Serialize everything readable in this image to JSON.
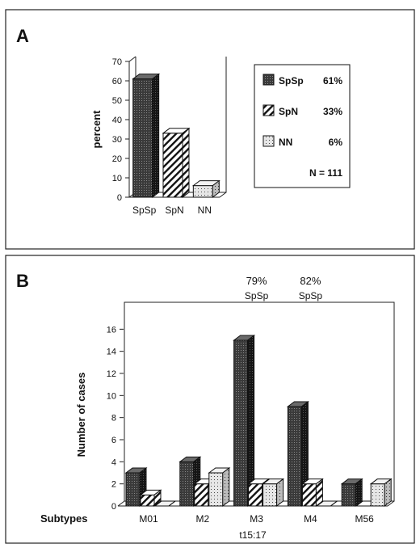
{
  "colors": {
    "SpSp": "#2e2e2e",
    "SpN": "#ffffff",
    "NN": "#d6d6d6",
    "ink": "#111111",
    "frame": "#222222"
  },
  "chart_data": [
    {
      "panel": "A",
      "type": "bar",
      "ylabel": "percent",
      "ylim": [
        0,
        70
      ],
      "yticks": [
        0,
        10,
        20,
        30,
        40,
        50,
        60,
        70
      ],
      "categories": [
        "SpSp",
        "SpN",
        "NN"
      ],
      "values": [
        61,
        33,
        6
      ],
      "legend": {
        "entries": [
          {
            "name": "SpSp",
            "value": "61%"
          },
          {
            "name": "SpN",
            "value": "33%"
          },
          {
            "name": "NN",
            "value": "6%"
          }
        ],
        "note": "N = 111"
      }
    },
    {
      "panel": "B",
      "type": "bar",
      "ylabel": "Number of cases",
      "xlabel": "t15:17",
      "row_label": "Subtypes",
      "ylim": [
        0,
        18
      ],
      "yticks": [
        0,
        2,
        4,
        6,
        8,
        10,
        12,
        14,
        16
      ],
      "categories": [
        "M01",
        "M2",
        "M3",
        "M4",
        "M56"
      ],
      "series": [
        {
          "name": "SpSp",
          "values": [
            3,
            4,
            15,
            9,
            2
          ]
        },
        {
          "name": "SpN",
          "values": [
            1,
            2,
            2,
            2,
            0
          ]
        },
        {
          "name": "NN",
          "values": [
            0,
            3,
            2,
            0,
            2
          ]
        }
      ],
      "annotations": [
        {
          "category": "M3",
          "percent": "79%",
          "label": "SpSp"
        },
        {
          "category": "M4",
          "percent": "82%",
          "label": "SpSp"
        }
      ]
    }
  ]
}
